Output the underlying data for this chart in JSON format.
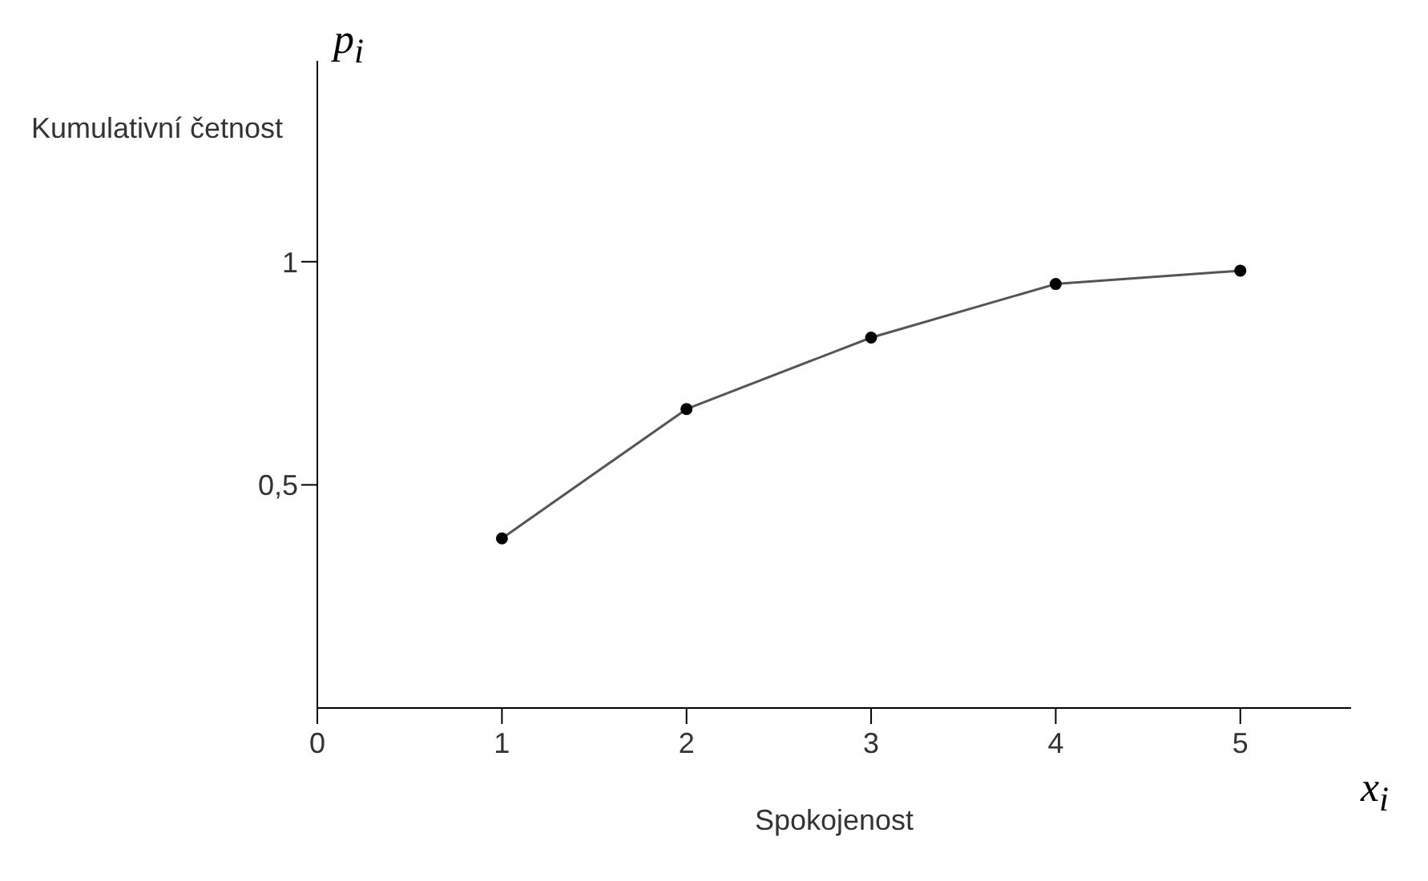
{
  "chart_data": {
    "type": "line",
    "ylabel": "Kumulativní četnost",
    "xlabel": "Spokojenost",
    "annotations": [
      "p$_{i}$",
      "x$_{i}$"
    ],
    "x": [
      1,
      2,
      3,
      4,
      5
    ],
    "series": [
      {
        "color": "#555555",
        "values": [
          0.38,
          0.67,
          0.83,
          0.95,
          0.98
        ]
      }
    ],
    "xlim": [
      0,
      5.6
    ],
    "xticks": [
      0,
      1,
      2,
      3,
      4,
      5
    ],
    "ylim": [
      0,
      1.45
    ],
    "yticks": [
      {
        "value": 0.5,
        "label": "0,5"
      },
      1
    ],
    "marker": "circle",
    "line_style": "solid",
    "grid": false,
    "legend": false
  }
}
